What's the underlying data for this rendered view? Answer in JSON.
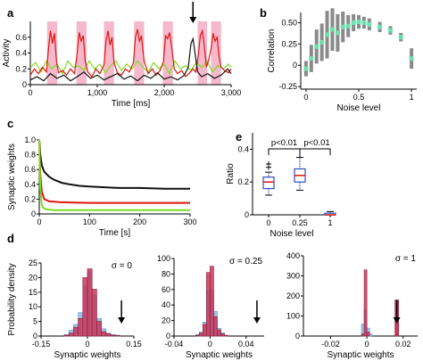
{
  "panel_labels": {
    "a": "a",
    "b": "b",
    "c": "c",
    "d": "d",
    "e": "e"
  },
  "colors": {
    "red": "#e0140c",
    "green": "#7ddc1f",
    "black": "#111111",
    "pink": "#f6b8cc",
    "mint": "#6fe0b0",
    "gray": "#8a8a8a",
    "blue_box": "#2f4dbf",
    "hist_blue": "#9cc3e6",
    "hist_red": "#c8375a"
  },
  "chart_data": [
    {
      "id": "a",
      "type": "line",
      "xlabel": "Time [ms]",
      "ylabel": "Activity",
      "xlim": [
        0,
        3000
      ],
      "ylim": [
        0,
        0.8
      ],
      "xticks": [
        0,
        1000,
        2000,
        3000
      ],
      "xtick_labels": [
        "0",
        "1,000",
        "2,000",
        "3,000"
      ],
      "yticks": [
        0,
        0.2,
        0.4,
        0.6
      ],
      "ytick_labels": [
        "0",
        "0.2",
        "0.4",
        "0.6"
      ],
      "shaded_intervals": [
        [
          250,
          400
        ],
        [
          690,
          840
        ],
        [
          1100,
          1250
        ],
        [
          1550,
          1700
        ],
        [
          1980,
          2130
        ],
        [
          2500,
          2640
        ],
        [
          2700,
          2850
        ]
      ],
      "arrow_at_x": 2430,
      "series": [
        {
          "color": "red",
          "x": [
            0,
            60,
            120,
            180,
            240,
            270,
            300,
            330,
            360,
            390,
            420,
            480,
            540,
            600,
            660,
            700,
            730,
            760,
            790,
            820,
            860,
            920,
            980,
            1040,
            1100,
            1130,
            1160,
            1190,
            1220,
            1250,
            1300,
            1360,
            1420,
            1480,
            1540,
            1570,
            1600,
            1630,
            1660,
            1700,
            1760,
            1820,
            1880,
            1940,
            1990,
            2020,
            2050,
            2080,
            2110,
            2150,
            2200,
            2260,
            2320,
            2380,
            2430,
            2470,
            2510,
            2540,
            2570,
            2600,
            2630,
            2660,
            2700,
            2730,
            2760,
            2790,
            2820,
            2850,
            2900,
            2960,
            3000
          ],
          "y": [
            0.12,
            0.2,
            0.14,
            0.22,
            0.16,
            0.45,
            0.68,
            0.52,
            0.65,
            0.3,
            0.15,
            0.18,
            0.12,
            0.2,
            0.14,
            0.4,
            0.66,
            0.55,
            0.62,
            0.3,
            0.16,
            0.1,
            0.2,
            0.14,
            0.25,
            0.55,
            0.68,
            0.5,
            0.6,
            0.28,
            0.15,
            0.12,
            0.2,
            0.16,
            0.28,
            0.6,
            0.7,
            0.55,
            0.62,
            0.3,
            0.14,
            0.2,
            0.12,
            0.18,
            0.3,
            0.62,
            0.58,
            0.66,
            0.48,
            0.2,
            0.14,
            0.18,
            0.1,
            0.15,
            0.2,
            0.16,
            0.38,
            0.62,
            0.68,
            0.48,
            0.22,
            0.3,
            0.45,
            0.65,
            0.55,
            0.6,
            0.35,
            0.22,
            0.18,
            0.15,
            0.2
          ]
        },
        {
          "color": "green",
          "x": [
            0,
            80,
            160,
            240,
            320,
            400,
            480,
            560,
            640,
            720,
            800,
            880,
            960,
            1040,
            1120,
            1200,
            1280,
            1360,
            1440,
            1520,
            1600,
            1680,
            1760,
            1840,
            1920,
            2000,
            2080,
            2160,
            2240,
            2320,
            2400,
            2480,
            2560,
            2640,
            2720,
            2800,
            2880,
            2960,
            3000
          ],
          "y": [
            0.22,
            0.28,
            0.16,
            0.3,
            0.2,
            0.26,
            0.14,
            0.3,
            0.22,
            0.24,
            0.18,
            0.3,
            0.2,
            0.26,
            0.15,
            0.24,
            0.3,
            0.18,
            0.26,
            0.2,
            0.3,
            0.22,
            0.16,
            0.28,
            0.2,
            0.26,
            0.14,
            0.3,
            0.2,
            0.24,
            0.18,
            0.28,
            0.22,
            0.3,
            0.16,
            0.24,
            0.2,
            0.26,
            0.22
          ]
        },
        {
          "color": "black",
          "x": [
            0,
            100,
            200,
            300,
            400,
            500,
            600,
            700,
            800,
            900,
            1000,
            1100,
            1200,
            1300,
            1400,
            1500,
            1600,
            1700,
            1800,
            1900,
            2000,
            2100,
            2200,
            2300,
            2360,
            2400,
            2430,
            2460,
            2500,
            2560,
            2650,
            2750,
            2850,
            2950,
            3000
          ],
          "y": [
            0.06,
            0.1,
            0.05,
            0.14,
            0.08,
            0.12,
            0.05,
            0.1,
            0.16,
            0.08,
            0.12,
            0.06,
            0.1,
            0.14,
            0.07,
            0.11,
            0.05,
            0.12,
            0.08,
            0.15,
            0.07,
            0.1,
            0.06,
            0.12,
            0.22,
            0.52,
            0.58,
            0.4,
            0.16,
            0.1,
            0.14,
            0.08,
            0.12,
            0.2,
            0.14
          ]
        }
      ]
    },
    {
      "id": "b",
      "type": "scatter",
      "xlabel": "Noise level",
      "ylabel": "Correlation",
      "xlim": [
        -0.05,
        1.05
      ],
      "ylim": [
        -0.28,
        0.62
      ],
      "xticks": [
        0,
        0.5,
        1
      ],
      "xtick_labels": [
        "0",
        "0.5",
        "1"
      ],
      "yticks": [
        -0.25,
        0,
        0.25,
        0.5
      ],
      "ytick_labels": [
        "-0.25",
        "0",
        "0.25",
        "0.50"
      ],
      "x": [
        0,
        0.05,
        0.1,
        0.15,
        0.2,
        0.25,
        0.3,
        0.35,
        0.4,
        0.45,
        0.5,
        0.55,
        0.6,
        0.7,
        0.8,
        0.9,
        1.0
      ],
      "y": [
        -0.04,
        0.08,
        0.22,
        0.27,
        0.36,
        0.42,
        0.38,
        0.45,
        0.46,
        0.5,
        0.51,
        0.5,
        0.48,
        0.45,
        0.41,
        0.33,
        0.08
      ],
      "err": [
        0.09,
        0.16,
        0.2,
        0.22,
        0.28,
        0.25,
        0.22,
        0.18,
        0.13,
        0.1,
        0.08,
        0.07,
        0.07,
        0.06,
        0.05,
        0.05,
        0.12
      ]
    },
    {
      "id": "c",
      "type": "line",
      "xlabel": "Time [s]",
      "ylabel": "Synaptic weights",
      "xlim": [
        0,
        300
      ],
      "ylim": [
        0,
        1.0
      ],
      "xticks": [
        0,
        100,
        200,
        300
      ],
      "xtick_labels": [
        "0",
        "100",
        "200",
        "300"
      ],
      "yticks": [
        0,
        0.2,
        0.4,
        0.6,
        0.8,
        1.0
      ],
      "ytick_labels": [
        "0",
        "0.2",
        "0.4",
        "0.6",
        "0.8",
        "1.0"
      ],
      "series": [
        {
          "color": "black",
          "x": [
            0,
            2,
            5,
            10,
            20,
            30,
            45,
            60,
            80,
            100,
            130,
            160,
            200,
            250,
            300
          ],
          "y": [
            1.0,
            0.8,
            0.66,
            0.57,
            0.5,
            0.46,
            0.42,
            0.4,
            0.38,
            0.37,
            0.36,
            0.35,
            0.35,
            0.34,
            0.34
          ]
        },
        {
          "color": "red",
          "x": [
            0,
            2,
            5,
            10,
            20,
            40,
            60,
            100,
            150,
            200,
            250,
            300
          ],
          "y": [
            1.0,
            0.55,
            0.3,
            0.2,
            0.17,
            0.16,
            0.155,
            0.15,
            0.15,
            0.15,
            0.15,
            0.15
          ]
        },
        {
          "color": "green",
          "x": [
            0,
            2,
            5,
            8,
            15,
            30,
            60,
            100,
            200,
            300
          ],
          "y": [
            1.0,
            0.35,
            0.12,
            0.08,
            0.06,
            0.05,
            0.05,
            0.05,
            0.05,
            0.05
          ]
        }
      ]
    },
    {
      "id": "e",
      "type": "box",
      "xlabel": "Noise level",
      "ylabel": "Ratio",
      "ylim": [
        0,
        0.5
      ],
      "yticks": [
        0,
        0.2,
        0.4
      ],
      "ytick_labels": [
        "0",
        "0.2",
        "0.4"
      ],
      "categories": [
        "0",
        "0.25",
        "1"
      ],
      "boxes": [
        {
          "min": 0.12,
          "q1": 0.16,
          "median": 0.2,
          "q3": 0.23,
          "max": 0.26,
          "outliers": [
            0.29,
            0.31
          ]
        },
        {
          "min": 0.15,
          "q1": 0.2,
          "median": 0.24,
          "q3": 0.28,
          "max": 0.35,
          "outliers": []
        },
        {
          "min": 0.0,
          "q1": 0.0,
          "median": 0.0,
          "q3": 0.01,
          "max": 0.02,
          "outliers": []
        }
      ],
      "annotations": [
        "p<0.01",
        "p<0.01"
      ]
    },
    {
      "id": "d1",
      "type": "histogram",
      "title": "σ = 0",
      "xlabel": "Synaptic weights",
      "ylabel": "Probability density",
      "xlim": [
        -0.15,
        0.15
      ],
      "ylim": [
        0,
        25
      ],
      "xticks": [
        -0.15,
        0,
        0.15
      ],
      "xtick_labels": [
        "-0.15",
        "0",
        "0.15"
      ],
      "yticks": [
        0,
        5,
        10,
        15,
        20,
        25
      ],
      "ytick_labels": [
        "0",
        "5",
        "10",
        "15",
        "20",
        "25"
      ],
      "bin_edges": [
        -0.075,
        -0.06,
        -0.045,
        -0.03,
        -0.015,
        0,
        0.015,
        0.03,
        0.045,
        0.06,
        0.075,
        0.09,
        0.105
      ],
      "series": [
        {
          "name": "blue",
          "counts": [
            0.5,
            2,
            4,
            8,
            17,
            22,
            14,
            6,
            2.5,
            1,
            0.5,
            0.3
          ]
        },
        {
          "name": "red",
          "counts": [
            0.3,
            1,
            3,
            6,
            20,
            23,
            16,
            5,
            1.5,
            0.8,
            0.3,
            0.2
          ]
        }
      ],
      "arrow_at_x": 0.11
    },
    {
      "id": "d2",
      "type": "histogram",
      "title": "σ = 0.25",
      "xlabel": "Synaptic weights",
      "ylabel": "",
      "xlim": [
        -0.04,
        0.06
      ],
      "ylim": [
        0,
        100
      ],
      "xticks": [
        -0.04,
        0,
        0.04
      ],
      "xtick_labels": [
        "-0.04",
        "0",
        "0.04"
      ],
      "yticks": [
        0,
        20,
        40,
        60,
        80,
        100
      ],
      "ytick_labels": [
        "0",
        "20",
        "40",
        "60",
        "80",
        "100"
      ],
      "bin_edges": [
        -0.016,
        -0.012,
        -0.008,
        -0.004,
        0,
        0.004,
        0.008,
        0.012,
        0.016,
        0.02
      ],
      "series": [
        {
          "name": "blue",
          "counts": [
            2,
            5,
            18,
            58,
            60,
            32,
            10,
            4,
            1
          ]
        },
        {
          "name": "red",
          "counts": [
            1,
            4,
            15,
            82,
            90,
            25,
            8,
            3,
            1
          ]
        }
      ],
      "arrow_at_x": 0.052
    },
    {
      "id": "d3",
      "type": "histogram",
      "title": "σ = 1",
      "xlabel": "Synaptic weights",
      "ylabel": "",
      "xlim": [
        -0.035,
        0.028
      ],
      "ylim": [
        0,
        400
      ],
      "xticks": [
        -0.02,
        0,
        0.02
      ],
      "xtick_labels": [
        "-0.02",
        "0",
        "0.02"
      ],
      "yticks": [
        0,
        100,
        200,
        300,
        400
      ],
      "ytick_labels": [
        "0",
        "100",
        "200",
        "300",
        "400"
      ],
      "bin_edges": [
        -0.003,
        -0.0015,
        0,
        0.0015,
        0.003
      ],
      "series": [
        {
          "name": "blue",
          "counts": [
            60,
            130,
            40,
            10
          ]
        },
        {
          "name": "red",
          "counts": [
            10,
            330,
            20,
            0
          ]
        }
      ],
      "extra_bars": [
        {
          "series": "red",
          "from": 0.0155,
          "to": 0.0175,
          "value": 180
        }
      ],
      "arrow_at_x": 0.0165
    }
  ]
}
